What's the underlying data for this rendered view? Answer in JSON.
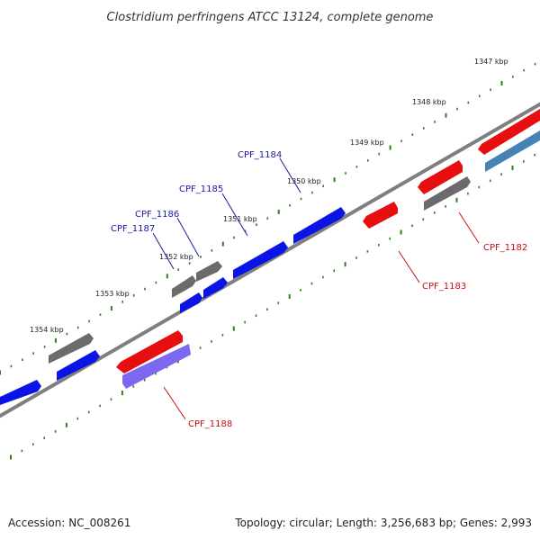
{
  "title": "Clostridium perfringens ATCC 13124, complete genome",
  "footer": {
    "accession": "Accession: NC_008261",
    "summary": "Topology: circular; Length: 3,256,683 bp; Genes: 2,993"
  },
  "colors": {
    "backbone": "#7f7f7f",
    "tick": "#2e7d1f",
    "forward_gene": "#0a14e6",
    "reverse_gene": "#e60e0e",
    "pseudo_gene": "#6b6b6b",
    "highlight_blue": "#4682b4",
    "highlight_purple": "#7b68ee",
    "label_blue": "#1a1aa6",
    "label_red": "#cc1111"
  },
  "kbp_labels": [
    "1347 kbp",
    "1348 kbp",
    "1349 kbp",
    "1350 kbp",
    "1351 kbp",
    "1352 kbp",
    "1353 kbp",
    "1354 kbp"
  ],
  "gene_labels": [
    "CPF_1184",
    "CPF_1185",
    "CPF_1186",
    "CPF_1187",
    "CPF_1182",
    "CPF_1183",
    "CPF_1188"
  ]
}
